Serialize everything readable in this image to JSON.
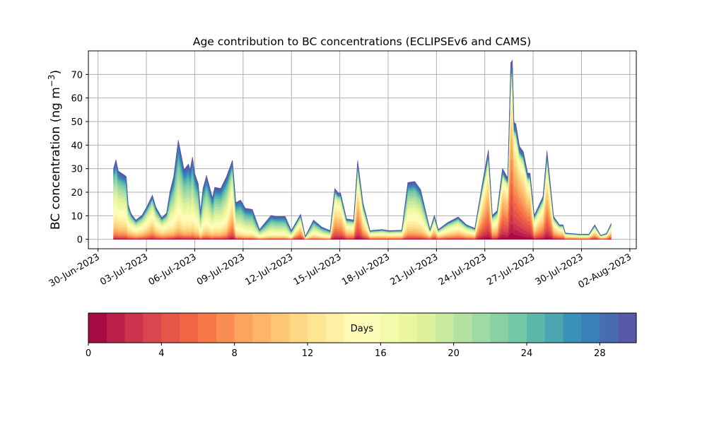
{
  "chart_data": {
    "type": "area",
    "stacked": true,
    "title": "Age contribution to BC concentrations (ECLIPSEv6 and CAMS)",
    "xlabel": "",
    "ylabel": "BC concentration (ng m",
    "ylabel_sup": "−3",
    "ylabel_close": ")",
    "ylim": [
      -4,
      80
    ],
    "yticks": [
      0,
      10,
      20,
      30,
      40,
      50,
      60,
      70
    ],
    "grid": true,
    "x_unit": "days since 30-Jun-2023",
    "xlim": [
      -0.6,
      33.4
    ],
    "xticks": [
      0,
      3,
      6,
      9,
      12,
      15,
      18,
      21,
      24,
      27,
      30,
      33
    ],
    "xtick_labels": [
      "30-Jun-2023",
      "03-Jul-2023",
      "06-Jul-2023",
      "09-Jul-2023",
      "12-Jul-2023",
      "15-Jul-2023",
      "18-Jul-2023",
      "21-Jul-2023",
      "24-Jul-2023",
      "27-Jul-2023",
      "30-Jul-2023",
      "02-Aug-2023"
    ],
    "x": [
      0.96,
      1.11,
      1.26,
      1.7,
      1.75,
      1.87,
      2.06,
      2.35,
      2.72,
      2.98,
      3.37,
      3.59,
      3.96,
      4.25,
      4.47,
      4.69,
      4.98,
      5.34,
      5.61,
      5.71,
      5.86,
      6.0,
      6.22,
      6.36,
      6.51,
      6.73,
      6.95,
      7.1,
      7.24,
      7.61,
      7.97,
      8.34,
      8.55,
      8.85,
      9.14,
      9.58,
      10.02,
      10.74,
      11.04,
      11.62,
      11.99,
      12.57,
      12.86,
      13.37,
      13.89,
      14.4,
      14.69,
      14.91,
      15.05,
      15.42,
      15.86,
      16.11,
      16.44,
      16.88,
      17.61,
      18.05,
      18.85,
      19.22,
      19.65,
      20.02,
      20.6,
      20.87,
      21.11,
      21.7,
      22.35,
      22.86,
      23.38,
      23.82,
      24.22,
      24.47,
      24.76,
      25.1,
      25.42,
      25.61,
      25.71,
      25.81,
      25.93,
      26.15,
      26.4,
      26.66,
      26.81,
      27.07,
      27.61,
      27.86,
      28.27,
      28.63,
      28.85,
      29.0,
      29.87,
      30.46,
      30.82,
      31.19,
      31.55,
      31.84
    ],
    "total": [
      30.2,
      33.8,
      29,
      27,
      26.6,
      14.7,
      10.8,
      8.2,
      10.2,
      13.2,
      18.8,
      13.7,
      9.2,
      11.2,
      20.6,
      26.6,
      42.2,
      29.6,
      32,
      29.6,
      35,
      28,
      23.6,
      11.7,
      21.6,
      27.1,
      21.6,
      17.6,
      22.1,
      21.6,
      26.6,
      33.6,
      15.6,
      16.7,
      13.2,
      12.7,
      4.2,
      10.2,
      9.7,
      9.7,
      3.7,
      10.7,
      1.2,
      8.2,
      5.2,
      3.7,
      21.6,
      19.7,
      19.7,
      8.7,
      8.2,
      33.6,
      15.6,
      3.7,
      4.2,
      3.7,
      3.9,
      24.1,
      24.6,
      21.1,
      4.2,
      10.2,
      4.2,
      7.2,
      9.5,
      6.2,
      4.7,
      22.6,
      38.1,
      10.2,
      12.2,
      30.1,
      26.1,
      75,
      76,
      49.6,
      49,
      39.6,
      37.1,
      28.1,
      28.1,
      10.2,
      18.2,
      37.6,
      9.7,
      6.2,
      6.2,
      2.7,
      2.2,
      2.2,
      6.2,
      1.7,
      2.5,
      6.7
    ],
    "mean_age_days": [
      17,
      17,
      17,
      17,
      17,
      16,
      15,
      15,
      15,
      15,
      14,
      15,
      15,
      15,
      18,
      19,
      19,
      19,
      19,
      19,
      19,
      19,
      19,
      19,
      19,
      19,
      19,
      19,
      19,
      19,
      18,
      13,
      19,
      20,
      20,
      20,
      18,
      20,
      20,
      20,
      18,
      12,
      15,
      18,
      18,
      18,
      11,
      11,
      11,
      13,
      13,
      10,
      13,
      14,
      14,
      14,
      14,
      17,
      17,
      17,
      14,
      13,
      14,
      14,
      14,
      14,
      14,
      10,
      9,
      13,
      13,
      8,
      8,
      7,
      7,
      7,
      7,
      7,
      8,
      8,
      8,
      13,
      11,
      9,
      12,
      12,
      12,
      13,
      13,
      13,
      12,
      13,
      13,
      12
    ],
    "colorbar": {
      "label": "Days",
      "range": [
        0,
        30
      ],
      "bins": 30,
      "ticks": [
        0,
        4,
        8,
        12,
        16,
        20,
        24,
        28
      ],
      "colormap": [
        "#9e0142",
        "#d53e4f",
        "#f46d43",
        "#fdae61",
        "#fee08b",
        "#ffffbf",
        "#e6f598",
        "#abdda4",
        "#66c2a5",
        "#3288bd",
        "#5e4fa2"
      ]
    }
  }
}
